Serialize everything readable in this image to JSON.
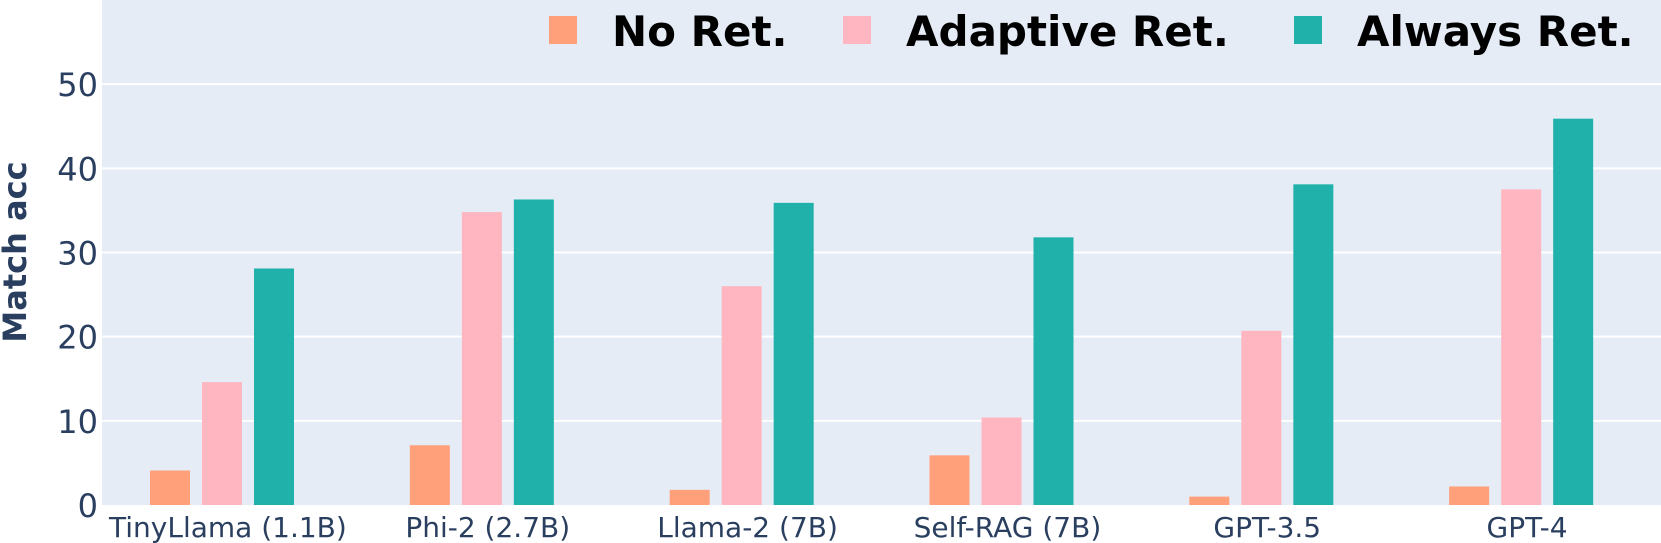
{
  "chart_data": {
    "type": "bar",
    "title": "",
    "xlabel": "",
    "ylabel": "Match acc",
    "ylim": [
      0,
      60
    ],
    "yticks": [
      0,
      10,
      20,
      30,
      40,
      50
    ],
    "grid": true,
    "legend_position": "top-right",
    "plot_background": "#e5ecf6",
    "categories": [
      "TinyLlama (1.1B)",
      "Phi-2 (2.7B)",
      "Llama-2 (7B)",
      "Self-RAG (7B)",
      "GPT-3.5",
      "GPT-4"
    ],
    "series": [
      {
        "name": "No Ret.",
        "color": "#ffa07a",
        "values": [
          4.1,
          7.1,
          1.8,
          5.9,
          1.0,
          2.2
        ]
      },
      {
        "name": "Adaptive Ret.",
        "color": "#ffb6c1",
        "values": [
          14.6,
          34.8,
          26.0,
          10.4,
          20.7,
          37.5
        ]
      },
      {
        "name": "Always Ret.",
        "color": "#20b2aa",
        "values": [
          28.1,
          36.3,
          35.9,
          31.8,
          38.1,
          45.9
        ]
      }
    ]
  }
}
